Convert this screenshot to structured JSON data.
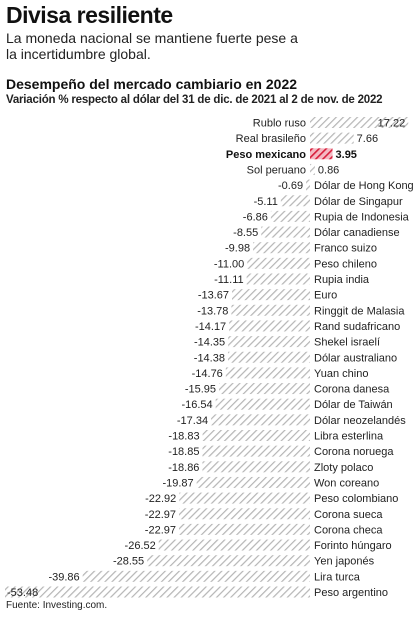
{
  "header": {
    "title": "Divisa resiliente",
    "subtitle": "La moneda nacional se mantiene fuerte pese a la incertidumbre global."
  },
  "source": "Fuente: Investing.com.",
  "colors": {
    "bar_hatch": "#b5b5b5",
    "highlight": "#d81e3c",
    "text": "#222222"
  },
  "chart_data": {
    "type": "bar",
    "orientation": "horizontal",
    "title": "Desempeño del mercado cambiario en 2022",
    "subtitle": "Variación % respecto al dólar del 31 de dic. de 2021 al 2 de nov. de 2022",
    "highlight": "Peso mexicano",
    "xlim": [
      -53.48,
      17.22
    ],
    "grid": false,
    "categories": [
      "Rublo ruso",
      "Real brasileño",
      "Peso mexicano",
      "Sol peruano",
      "Dólar de Hong Kong",
      "Dólar de Singapur",
      "Rupia de Indonesia",
      "Dólar canadiense",
      "Franco suizo",
      "Peso chileno",
      "Rupia india",
      "Euro",
      "Ringgit de Malasia",
      "Rand sudafricano",
      "Shekel israelí",
      "Dólar australiano",
      "Yuan chino",
      "Corona danesa",
      "Dólar de Taiwán",
      "Dólar neozelandés",
      "Libra esterlina",
      "Corona noruega",
      "Zloty polaco",
      "Won coreano",
      "Peso colombiano",
      "Corona sueca",
      "Corona checa",
      "Forinto húngaro",
      "Yen japonés",
      "Lira turca",
      "Peso argentino"
    ],
    "values": [
      17.22,
      7.66,
      3.95,
      0.86,
      -0.69,
      -5.11,
      -6.86,
      -8.55,
      -9.98,
      -11.0,
      -11.11,
      -13.67,
      -13.78,
      -14.17,
      -14.35,
      -14.38,
      -14.76,
      -15.95,
      -16.54,
      -17.34,
      -18.83,
      -18.85,
      -18.86,
      -19.87,
      -22.92,
      -22.97,
      -22.97,
      -26.52,
      -28.55,
      -39.86,
      -53.48
    ],
    "labels": [
      "17.22",
      "7.66",
      "3.95",
      "0.86",
      "-0.69",
      "-5.11",
      "-6.86",
      "-8.55",
      "-9.98",
      "-11.00",
      "-11.11",
      "-13.67",
      "-13.78",
      "-14.17",
      "-14.35",
      "-14.38",
      "-14.76",
      "-15.95",
      "-16.54",
      "-17.34",
      "-18.83",
      "-18.85",
      "-18.86",
      "-19.87",
      "-22.92",
      "-22.97",
      "-22.97",
      "-26.52",
      "-28.55",
      "-39.86",
      "-53.48"
    ]
  }
}
